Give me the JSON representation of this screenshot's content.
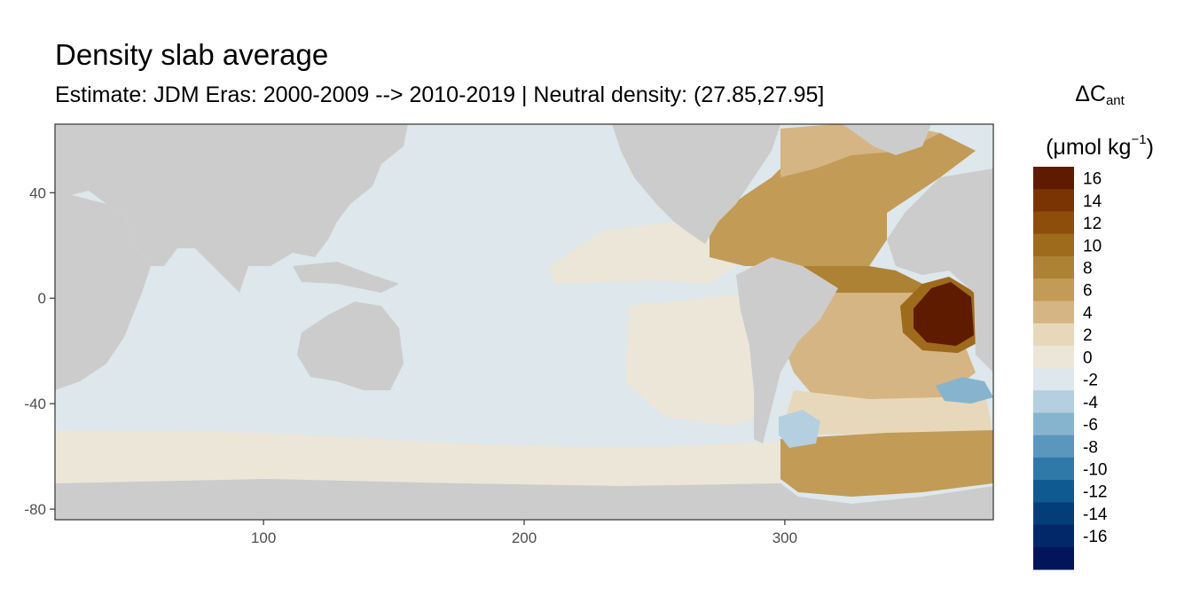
{
  "title": "Density slab average",
  "subtitle": "Estimate: JDM Eras: 2000-2009 --> 2010-2019 | Neutral density: (27.85,27.95]",
  "legend": {
    "title_main": "ΔC",
    "title_sub": "ant",
    "unit_prefix": "(μmol kg",
    "unit_sup": "−1",
    "unit_suffix": ")",
    "bins": [
      {
        "label": "16",
        "color": "#5e1b00"
      },
      {
        "label": "14",
        "color": "#7a3404"
      },
      {
        "label": "12",
        "color": "#8e4e0b"
      },
      {
        "label": "10",
        "color": "#9e6a1c"
      },
      {
        "label": "8",
        "color": "#ae8234"
      },
      {
        "label": "6",
        "color": "#c29b56"
      },
      {
        "label": "4",
        "color": "#d5b583"
      },
      {
        "label": "2",
        "color": "#e8d8bb"
      },
      {
        "label": "0",
        "color": "#ece6d9"
      },
      {
        "label": "-2",
        "color": "#dde7ec"
      },
      {
        "label": "-4",
        "color": "#b4cfdf"
      },
      {
        "label": "-6",
        "color": "#86b4cf"
      },
      {
        "label": "-8",
        "color": "#5a96bd"
      },
      {
        "label": "-10",
        "color": "#2f79a8"
      },
      {
        "label": "-12",
        "color": "#0f5a91"
      },
      {
        "label": "-14",
        "color": "#043e7a"
      },
      {
        "label": "-16",
        "color": "#032869"
      },
      {
        "label": "",
        "color": "#02155a"
      }
    ]
  },
  "chart_data": {
    "type": "heatmap",
    "x_ticks": [
      100,
      200,
      300
    ],
    "y_ticks": [
      40,
      0,
      -40,
      -80
    ],
    "xlim": [
      20,
      380
    ],
    "ylim": [
      -84,
      66
    ],
    "land_color": "#cccccc",
    "regions": [
      {
        "name": "pacific-indian-basin",
        "value": -1
      },
      {
        "name": "southern-ocean-band",
        "value": 1
      },
      {
        "name": "east-pacific-tongue",
        "value": 1
      },
      {
        "name": "southeast-pacific",
        "value": 1
      },
      {
        "name": "north-atlantic",
        "value": 7
      },
      {
        "name": "subpolar-north-atlantic",
        "value": 5
      },
      {
        "name": "tropical-atlantic",
        "value": 9
      },
      {
        "name": "gulf-of-guinea-hotspot",
        "value": 17
      },
      {
        "name": "south-atlantic",
        "value": 5
      },
      {
        "name": "weddell-sector",
        "value": 7
      },
      {
        "name": "agulhas-negative-patch",
        "value": -5
      },
      {
        "name": "drake-passage-negative",
        "value": -3
      }
    ]
  }
}
